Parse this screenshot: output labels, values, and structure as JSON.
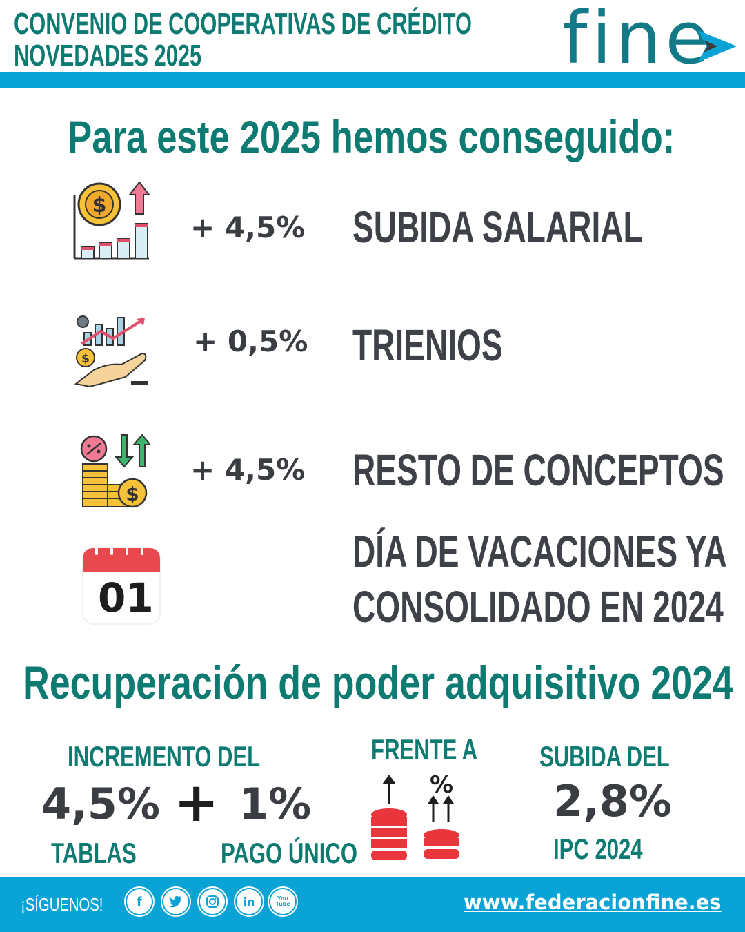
{
  "header": {
    "title_line1": "CONVENIO DE COOPERATIVAS DE CRÉDITO",
    "title_line2": "NOVEDADES 2025",
    "logo": "fine",
    "brand_color": "#0aa3d6",
    "teal_color": "#0e7b73"
  },
  "main_heading": "Para este 2025 hemos conseguido:",
  "items": [
    {
      "icon": "salary-raise-icon",
      "value": "+ 4,5%",
      "label": "SUBIDA SALARIAL"
    },
    {
      "icon": "growth-hand-icon",
      "value": "+ 0,5%",
      "label": "TRIENIOS"
    },
    {
      "icon": "coins-arrows-icon",
      "value": "+ 4,5%",
      "label": "RESTO DE CONCEPTOS"
    },
    {
      "icon": "calendar-icon",
      "calendar_text": "01",
      "value": "",
      "label_line1": "DÍA DE VACACIONES YA",
      "label_line2": "CONSOLIDADO EN 2024"
    }
  ],
  "section2_heading": "Recuperación de poder adquisitivo 2024",
  "increment": {
    "title": "INCREMENTO DEL",
    "tablas_value": "4,5%",
    "tablas_label": "TABLAS",
    "plus": "+",
    "pago_value": "1%",
    "pago_label": "PAGO ÚNICO"
  },
  "frente": {
    "title": "FRENTE A",
    "percent_symbol": "%"
  },
  "subida": {
    "title": "SUBIDA DEL",
    "value": "2,8%",
    "label": "IPC 2024"
  },
  "footer": {
    "follow": "¡SÍGUENOS!",
    "socials": [
      {
        "icon": "facebook-icon",
        "glyph": "f"
      },
      {
        "icon": "twitter-icon",
        "glyph": "t"
      },
      {
        "icon": "instagram-icon",
        "glyph": "◎"
      },
      {
        "icon": "linkedin-icon",
        "glyph": "in"
      },
      {
        "icon": "youtube-icon",
        "glyph": "You\nTube"
      }
    ],
    "website": "www.federacionfine.es"
  }
}
